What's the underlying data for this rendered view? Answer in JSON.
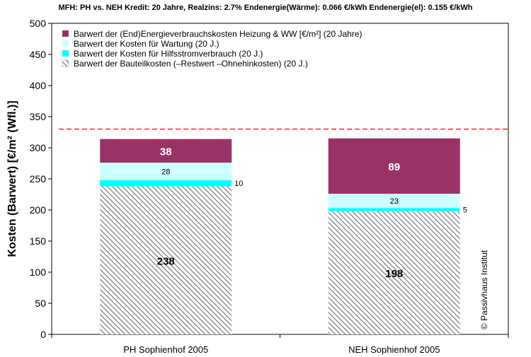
{
  "chart_data": {
    "type": "bar",
    "stacked": true,
    "title": "MFH: PH vs. NEH    Kredit: 20 Jahre,   Realzins: 2.7%   Endenergie(Wärme): 0.066 €/kWh   Endenergie(el): 0.155 €/kWh",
    "ylabel": "Kosten (Barwert)  [€/m² (Wfl.)]",
    "xlabel": "",
    "ylim": [
      0,
      500
    ],
    "yticks": [
      0,
      50,
      100,
      150,
      200,
      250,
      300,
      350,
      400,
      450,
      500
    ],
    "categories": [
      "PH Sophienhof 2005",
      "NEH Sophienhof 2005"
    ],
    "reference_line": {
      "value": 330,
      "color": "#ff0000",
      "style": "dashed"
    },
    "legend_position": "top-left inside plot",
    "series": [
      {
        "name": "Barwert der Bauteilkosten (–Restwert –Ohnehinkosten)  (20 J.)",
        "values": [
          238,
          198
        ],
        "color": "#a0a0a0",
        "pattern": "hatch",
        "label_style": "black"
      },
      {
        "name": "Barwert der Kosten für  Hilfsstromverbrauch (20 J.)",
        "values": [
          10,
          5
        ],
        "color": "#00ffff",
        "label_style": "small"
      },
      {
        "name": "Barwert der Kosten für  Wartung (20 J.)",
        "values": [
          28,
          23
        ],
        "color": "#ccffff",
        "label_style": "small"
      },
      {
        "name": "Barwert der (End)Energieverbrauchskosten Heizung & WW   [€/m²]  (20 Jahre)",
        "values": [
          38,
          89
        ],
        "color": "#993366",
        "label_style": "white"
      }
    ],
    "legend_order": [
      3,
      2,
      1,
      0
    ],
    "copyright": "© Passivhaus Institut"
  }
}
